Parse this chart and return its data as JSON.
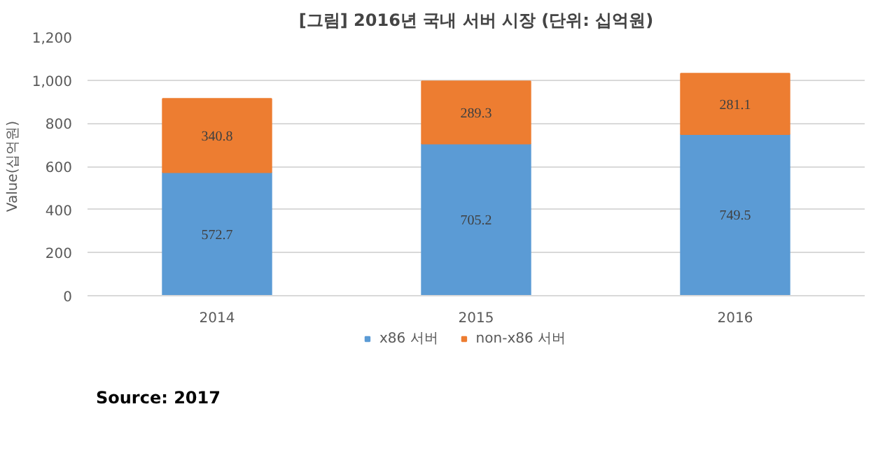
{
  "chart_data": {
    "type": "bar",
    "title": "[그림] 2016년 국내 서버 시장 (단위: 십억원)",
    "ylabel": "Value(십억원)",
    "categories": [
      "2014",
      "2015",
      "2016"
    ],
    "series": [
      {
        "name": "x86 서버",
        "color": "#5b9bd5",
        "values": [
          572.7,
          705.2,
          749.5
        ]
      },
      {
        "name": "non-x86 서버",
        "color": "#ed7d31",
        "values": [
          340.8,
          289.3,
          281.1
        ]
      }
    ],
    "stacked": true,
    "ylim": [
      0,
      1200
    ],
    "yticks": [
      0,
      200,
      400,
      600,
      800,
      {
        "value": 1000,
        "label": "1,000"
      },
      {
        "value": 1200,
        "label": "1,200"
      }
    ],
    "grid": "y",
    "legend": "bottom",
    "data_labels": true,
    "annotations": [
      "Source: 2017"
    ]
  }
}
